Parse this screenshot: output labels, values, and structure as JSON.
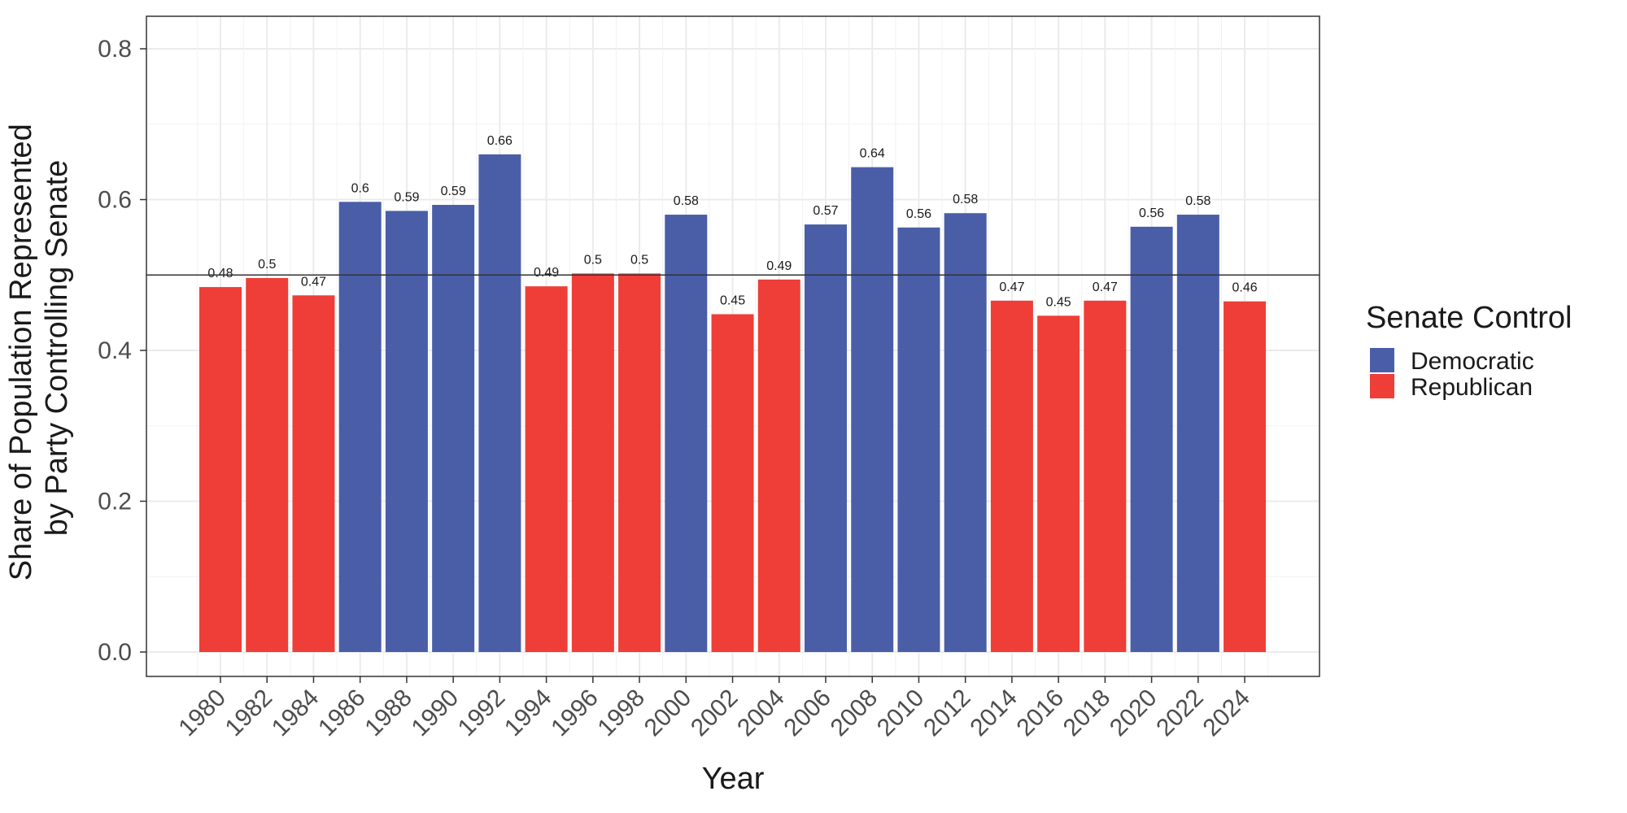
{
  "chart_data": {
    "type": "bar",
    "title": "",
    "xlabel": "Year",
    "ylabel_lines": [
      "Share of Population Represented",
      "by Party Controlling Senate"
    ],
    "ylim": [
      0,
      0.8
    ],
    "yticks": [
      "0.0",
      "0.2",
      "0.4",
      "0.6",
      "0.8"
    ],
    "ytick_values": [
      0,
      0.2,
      0.4,
      0.6,
      0.8
    ],
    "reference_line": 0.5,
    "grid": true,
    "legend_position": "right",
    "legend": {
      "title": "Senate Control",
      "entries": [
        {
          "name": "Democratic",
          "color": "#4a5ea8"
        },
        {
          "name": "Republican",
          "color": "#ee3e37"
        }
      ]
    },
    "categories": [
      "1980",
      "1982",
      "1984",
      "1986",
      "1988",
      "1990",
      "1992",
      "1994",
      "1996",
      "1998",
      "2000",
      "2002",
      "2004",
      "2006",
      "2008",
      "2010",
      "2012",
      "2014",
      "2016",
      "2018",
      "2020",
      "2022",
      "2024"
    ],
    "values": [
      0.484,
      0.496,
      0.473,
      0.597,
      0.585,
      0.593,
      0.66,
      0.485,
      0.502,
      0.502,
      0.58,
      0.448,
      0.494,
      0.567,
      0.643,
      0.563,
      0.582,
      0.466,
      0.446,
      0.466,
      0.564,
      0.58,
      0.465
    ],
    "labels": [
      "0.48",
      "0.5",
      "0.47",
      "0.6",
      "0.59",
      "0.59",
      "0.66",
      "0.49",
      "0.5",
      "0.5",
      "0.58",
      "0.45",
      "0.49",
      "0.57",
      "0.64",
      "0.56",
      "0.58",
      "0.47",
      "0.45",
      "0.47",
      "0.56",
      "0.58",
      "0.46"
    ],
    "party": [
      "Republican",
      "Republican",
      "Republican",
      "Democratic",
      "Democratic",
      "Democratic",
      "Democratic",
      "Republican",
      "Republican",
      "Republican",
      "Democratic",
      "Republican",
      "Republican",
      "Democratic",
      "Democratic",
      "Democratic",
      "Democratic",
      "Republican",
      "Republican",
      "Republican",
      "Democratic",
      "Democratic",
      "Republican"
    ]
  }
}
